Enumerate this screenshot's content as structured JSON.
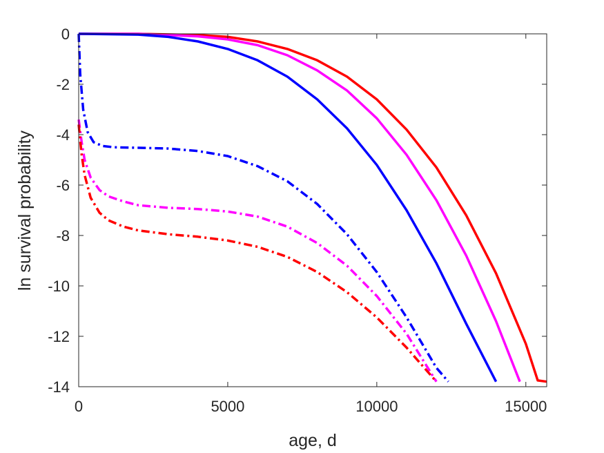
{
  "chart_data": {
    "type": "line",
    "xlabel": "age, d",
    "ylabel": "ln survival probability",
    "xlim": [
      0,
      15700
    ],
    "ylim": [
      -14,
      0
    ],
    "xticks": [
      0,
      5000,
      10000,
      15000
    ],
    "xtick_labels": [
      "0",
      "5000",
      "10000",
      "15000"
    ],
    "yticks": [
      0,
      -2,
      -4,
      -6,
      -8,
      -10,
      -12,
      -14
    ],
    "ytick_labels": [
      "0",
      "-2",
      "-4",
      "-6",
      "-8",
      "-10",
      "-12",
      "-14"
    ],
    "grid": false,
    "legend": false,
    "series": [
      {
        "color": "#ff0000",
        "dash": "solid",
        "x": [
          0,
          2000,
          4000,
          5000,
          6000,
          7000,
          8000,
          9000,
          10000,
          11000,
          12000,
          13000,
          14000,
          15000,
          15400,
          15700
        ],
        "y": [
          0,
          0,
          -0.05,
          -0.12,
          -0.3,
          -0.6,
          -1.05,
          -1.7,
          -2.6,
          -3.8,
          -5.3,
          -7.2,
          -9.5,
          -12.3,
          -13.75,
          -13.8
        ]
      },
      {
        "color": "#ff00ff",
        "dash": "solid",
        "x": [
          0,
          2000,
          4000,
          5000,
          6000,
          7000,
          8000,
          9000,
          10000,
          11000,
          12000,
          13000,
          14000,
          14800
        ],
        "y": [
          0,
          0,
          -0.1,
          -0.22,
          -0.45,
          -0.85,
          -1.45,
          -2.25,
          -3.35,
          -4.8,
          -6.6,
          -8.8,
          -11.4,
          -13.8
        ]
      },
      {
        "color": "#0000ff",
        "dash": "solid",
        "x": [
          0,
          2000,
          3000,
          4000,
          5000,
          6000,
          7000,
          8000,
          9000,
          10000,
          11000,
          12000,
          13000,
          14000
        ],
        "y": [
          0,
          -0.03,
          -0.12,
          -0.3,
          -0.6,
          -1.05,
          -1.7,
          -2.6,
          -3.75,
          -5.2,
          -7.0,
          -9.1,
          -11.5,
          -13.8
        ]
      },
      {
        "color": "#0000ff",
        "dash": "dashdot",
        "x": [
          0,
          50,
          150,
          300,
          500,
          800,
          1200,
          2000,
          3000,
          4000,
          5000,
          6000,
          7000,
          8000,
          9000,
          10000,
          11000,
          12000,
          12400
        ],
        "y": [
          0,
          -1.6,
          -3.0,
          -3.9,
          -4.3,
          -4.45,
          -4.5,
          -4.52,
          -4.55,
          -4.65,
          -4.85,
          -5.25,
          -5.85,
          -6.75,
          -7.95,
          -9.45,
          -11.25,
          -13.25,
          -13.8
        ]
      },
      {
        "color": "#ff00ff",
        "dash": "dashdot",
        "x": [
          0,
          100,
          200,
          400,
          700,
          1000,
          1500,
          2000,
          3000,
          4000,
          5000,
          6000,
          7000,
          8000,
          9000,
          10000,
          11000,
          12000
        ],
        "y": [
          -3.4,
          -4.3,
          -5.0,
          -5.7,
          -6.2,
          -6.45,
          -6.65,
          -6.8,
          -6.9,
          -6.95,
          -7.05,
          -7.25,
          -7.65,
          -8.3,
          -9.2,
          -10.4,
          -11.9,
          -13.8
        ]
      },
      {
        "color": "#ff0000",
        "dash": "dashdot",
        "x": [
          0,
          100,
          200,
          400,
          700,
          1000,
          1500,
          2000,
          3000,
          4000,
          5000,
          6000,
          7000,
          8000,
          9000,
          10000,
          11000,
          12000
        ],
        "y": [
          -3.6,
          -4.8,
          -5.6,
          -6.5,
          -7.1,
          -7.4,
          -7.65,
          -7.8,
          -7.95,
          -8.05,
          -8.2,
          -8.45,
          -8.85,
          -9.45,
          -10.25,
          -11.25,
          -12.45,
          -13.8
        ]
      }
    ]
  }
}
